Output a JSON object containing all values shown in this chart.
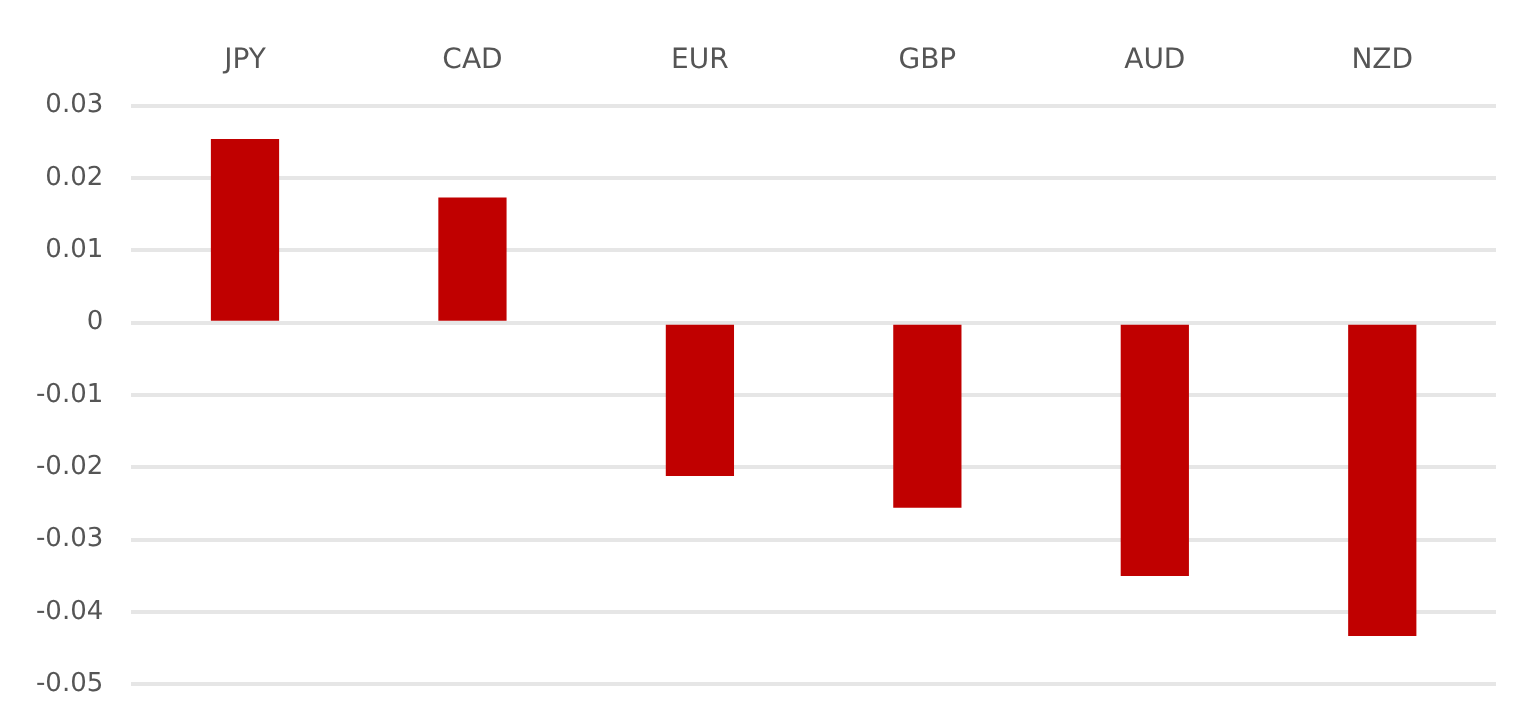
{
  "chart_data": {
    "type": "bar",
    "categories": [
      "JPY",
      "CAD",
      "EUR",
      "GBP",
      "AUD",
      "NZD"
    ],
    "values": [
      0.0254,
      0.0173,
      -0.0212,
      -0.0256,
      -0.035,
      -0.0433
    ],
    "color": "#c00000",
    "ylim": [
      -0.05,
      0.03
    ],
    "yticks": [
      -0.05,
      -0.04,
      -0.03,
      -0.02,
      -0.01,
      0,
      0.01,
      0.02,
      0.03
    ],
    "grid": "y",
    "legend": false
  }
}
